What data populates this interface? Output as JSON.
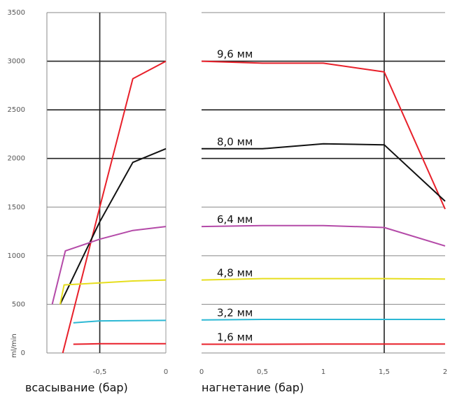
{
  "chart_data": {
    "type": "line",
    "ylabel": "ml/min",
    "ylim": [
      0,
      3500
    ],
    "yticks": [
      "3500",
      "3000",
      "2500",
      "2000",
      "1500",
      "1000",
      "500",
      "0"
    ],
    "yvalues": [
      3500,
      3000,
      2500,
      2000,
      1500,
      1000,
      500,
      0
    ],
    "grid": true,
    "panels": [
      {
        "name": "suction",
        "xlabel": "всасывание (бар)",
        "xlim": [
          -0.9,
          0
        ],
        "xticks": [
          {
            "value": -0.5,
            "label": "-0,5"
          },
          {
            "value": 0,
            "label": "0"
          }
        ],
        "vgrid": [
          -0.5,
          0
        ],
        "series": [
          {
            "color": "#e8202a",
            "points": [
              [
                -0.78,
                0
              ],
              [
                -0.5,
                1500
              ],
              [
                -0.25,
                2820
              ],
              [
                0,
                3000
              ]
            ]
          },
          {
            "color": "#111111",
            "points": [
              [
                -0.8,
                500
              ],
              [
                -0.5,
                1350
              ],
              [
                -0.25,
                1960
              ],
              [
                0,
                2100
              ]
            ]
          },
          {
            "color": "#b44aa8",
            "points": [
              [
                -0.86,
                500
              ],
              [
                -0.76,
                1050
              ],
              [
                -0.5,
                1170
              ],
              [
                -0.25,
                1260
              ],
              [
                0,
                1300
              ]
            ]
          },
          {
            "color": "#e6de1e",
            "points": [
              [
                -0.8,
                500
              ],
              [
                -0.77,
                700
              ],
              [
                -0.5,
                720
              ],
              [
                -0.25,
                740
              ],
              [
                0,
                750
              ]
            ]
          },
          {
            "color": "#2cb8d4",
            "points": [
              [
                -0.7,
                310
              ],
              [
                -0.5,
                330
              ],
              [
                0,
                335
              ]
            ]
          },
          {
            "color": "#e8202a",
            "points": [
              [
                -0.7,
                90
              ],
              [
                -0.5,
                95
              ],
              [
                0,
                95
              ]
            ]
          }
        ]
      },
      {
        "name": "discharge",
        "xlabel": "нагнетание (бар)",
        "xlim": [
          0,
          2
        ],
        "xticks": [
          {
            "value": 0,
            "label": "0"
          },
          {
            "value": 0.5,
            "label": "0,5"
          },
          {
            "value": 1,
            "label": "1"
          },
          {
            "value": 1.5,
            "label": "1,5"
          },
          {
            "value": 2,
            "label": "2"
          }
        ],
        "vgrid": [
          1.5
        ],
        "series": [
          {
            "name": "9,6 мм",
            "color": "#e8202a",
            "points": [
              [
                0,
                3000
              ],
              [
                0.5,
                2980
              ],
              [
                1,
                2980
              ],
              [
                1.5,
                2890
              ],
              [
                2,
                1480
              ]
            ]
          },
          {
            "name": "8,0 мм",
            "color": "#111111",
            "points": [
              [
                0,
                2100
              ],
              [
                0.5,
                2100
              ],
              [
                1,
                2150
              ],
              [
                1.5,
                2140
              ],
              [
                2,
                1560
              ]
            ]
          },
          {
            "name": "6,4 мм",
            "color": "#b44aa8",
            "points": [
              [
                0,
                1300
              ],
              [
                0.5,
                1310
              ],
              [
                1,
                1310
              ],
              [
                1.5,
                1290
              ],
              [
                2,
                1100
              ]
            ]
          },
          {
            "name": "4,8 мм",
            "color": "#e6de1e",
            "points": [
              [
                0,
                750
              ],
              [
                0.5,
                765
              ],
              [
                1,
                765
              ],
              [
                1.5,
                765
              ],
              [
                2,
                760
              ]
            ]
          },
          {
            "name": "3,2 мм",
            "color": "#2cb8d4",
            "points": [
              [
                0,
                340
              ],
              [
                0.5,
                345
              ],
              [
                1,
                345
              ],
              [
                1.5,
                345
              ],
              [
                2,
                345
              ]
            ]
          },
          {
            "name": "1,6 мм",
            "color": "#e8202a",
            "points": [
              [
                0,
                90
              ],
              [
                0.5,
                90
              ],
              [
                1,
                92
              ],
              [
                1.5,
                92
              ],
              [
                2,
                92
              ]
            ]
          }
        ]
      }
    ]
  }
}
